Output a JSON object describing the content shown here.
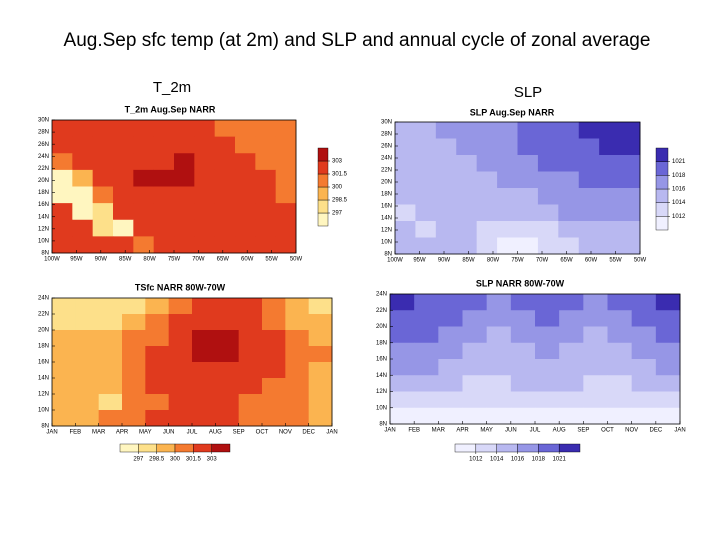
{
  "title": "Aug.Sep sfc temp (at 2m) and SLP and annual cycle of zonal average",
  "column_labels": [
    "T_2m",
    "SLP"
  ],
  "panels": [
    {
      "title": "T_2m Aug.Sep NARR",
      "yticks": [
        "30N",
        "28N",
        "26N",
        "24N",
        "22N",
        "20N",
        "18N",
        "16N",
        "14N",
        "12N",
        "10N",
        "8N"
      ],
      "xticks": [
        "100W",
        "95W",
        "90W",
        "85W",
        "80W",
        "75W",
        "70W",
        "65W",
        "60W",
        "55W",
        "50W"
      ],
      "levels": [
        297,
        298.5,
        300,
        301.5,
        303
      ],
      "colors": [
        "#fff6c0",
        "#fde08a",
        "#fbb450",
        "#f47a30",
        "#e03a1e",
        "#b01010"
      ],
      "grid": [
        [
          302.5,
          302,
          302,
          302,
          302,
          302,
          302,
          302,
          301,
          301,
          300,
          300
        ],
        [
          302,
          302,
          302,
          302,
          302,
          302,
          302,
          302,
          302,
          301,
          301,
          300
        ],
        [
          301,
          302,
          302,
          302,
          302,
          302,
          303.5,
          302,
          302,
          302,
          301,
          301
        ],
        [
          296,
          299,
          302,
          302,
          303.5,
          303.5,
          303.5,
          302,
          302,
          302,
          302,
          301
        ],
        [
          295,
          296,
          300,
          302,
          302,
          302,
          302,
          302,
          302,
          302,
          302,
          301
        ],
        [
          302,
          296,
          298,
          302,
          302,
          302,
          302,
          302,
          302,
          302,
          302,
          302
        ],
        [
          302,
          302,
          298,
          296,
          302,
          302,
          302,
          302,
          302,
          302,
          302,
          302
        ],
        [
          302,
          302,
          302,
          302,
          300,
          302,
          302,
          302,
          302,
          302,
          302,
          302
        ]
      ]
    },
    {
      "title": "SLP Aug.Sep NARR",
      "yticks": [
        "30N",
        "28N",
        "26N",
        "24N",
        "22N",
        "20N",
        "18N",
        "16N",
        "14N",
        "12N",
        "10N",
        "8N"
      ],
      "xticks": [
        "100W",
        "95W",
        "90W",
        "85W",
        "80W",
        "75W",
        "70W",
        "65W",
        "60W",
        "55W",
        "50W"
      ],
      "levels": [
        1012,
        1014,
        1016,
        1018,
        1021
      ],
      "colors": [
        "#f0f0ff",
        "#d8d8f8",
        "#b8b8f0",
        "#9696e6",
        "#6a66d6",
        "#3a2cb0"
      ],
      "grid": [
        [
          1015,
          1015,
          1016,
          1017,
          1017,
          1017,
          1018,
          1019,
          1020,
          1022,
          1022,
          1022
        ],
        [
          1015,
          1015,
          1015,
          1016,
          1016,
          1017,
          1018,
          1019,
          1019,
          1020,
          1021,
          1021
        ],
        [
          1015,
          1015,
          1015,
          1015,
          1016,
          1016,
          1017,
          1018,
          1018,
          1019,
          1019,
          1019
        ],
        [
          1014,
          1015,
          1015,
          1015,
          1015,
          1016,
          1016,
          1017,
          1017,
          1018,
          1018,
          1018
        ],
        [
          1014,
          1014,
          1015,
          1015,
          1015,
          1015,
          1015,
          1016,
          1016,
          1017,
          1017,
          1017
        ],
        [
          1013,
          1014,
          1014,
          1014,
          1015,
          1015,
          1015,
          1015,
          1016,
          1016,
          1016,
          1016
        ],
        [
          1015,
          1013,
          1014,
          1014,
          1013,
          1013,
          1013,
          1012.5,
          1014,
          1015,
          1015,
          1015
        ],
        [
          1015,
          1015,
          1014,
          1014,
          1012,
          1011,
          1011,
          1012,
          1013,
          1014,
          1014,
          1014
        ]
      ]
    },
    {
      "title": "TSfc NARR 80W-70W",
      "yticks": [
        "24N",
        "22N",
        "20N",
        "18N",
        "16N",
        "14N",
        "12N",
        "10N",
        "8N"
      ],
      "xticks": [
        "JAN",
        "FEB",
        "MAR",
        "APR",
        "MAY",
        "JUN",
        "JUL",
        "AUG",
        "SEP",
        "OCT",
        "NOV",
        "DEC",
        "JAN"
      ],
      "levels": [
        297,
        298.5,
        300,
        301.5,
        303
      ],
      "colors": [
        "#fff6c0",
        "#fde08a",
        "#fbb450",
        "#f47a30",
        "#e03a1e",
        "#b01010"
      ],
      "grid": [
        [
          297,
          297,
          297.5,
          298,
          299.5,
          301,
          301.5,
          302,
          301.5,
          300.5,
          299,
          297.5
        ],
        [
          298,
          297.5,
          298,
          299,
          300.5,
          302,
          302.5,
          302.5,
          302,
          301,
          299.5,
          298.5
        ],
        [
          298.5,
          298.5,
          299,
          300,
          301,
          302.5,
          303.5,
          303.5,
          302.5,
          301.5,
          300.5,
          299
        ],
        [
          299.5,
          299,
          299.5,
          300.5,
          301.5,
          302.5,
          303.5,
          303.5,
          302.5,
          301.5,
          300.5,
          300
        ],
        [
          299,
          299,
          299.5,
          300.5,
          301.5,
          302,
          302,
          302,
          302,
          301.5,
          300.5,
          299.5
        ],
        [
          299,
          299,
          299.5,
          300.5,
          301.5,
          301.5,
          301.5,
          301.5,
          301.5,
          300.5,
          300,
          299
        ],
        [
          299,
          299,
          298,
          300,
          301,
          301.5,
          301.5,
          301.5,
          301,
          300.5,
          300,
          299.5
        ],
        [
          299.5,
          299.5,
          300,
          300.5,
          301.5,
          301.5,
          301.5,
          301.5,
          301,
          300.5,
          300,
          299.5
        ]
      ]
    },
    {
      "title": "SLP NARR 80W-70W",
      "yticks": [
        "24N",
        "22N",
        "20N",
        "18N",
        "16N",
        "14N",
        "12N",
        "10N",
        "8N"
      ],
      "xticks": [
        "JAN",
        "FEB",
        "MAR",
        "APR",
        "MAY",
        "JUN",
        "JUL",
        "AUG",
        "SEP",
        "OCT",
        "NOV",
        "DEC",
        "JAN"
      ],
      "levels": [
        1012,
        1014,
        1016,
        1018,
        1021
      ],
      "colors": [
        "#f0f0ff",
        "#d8d8f8",
        "#b8b8f0",
        "#9696e6",
        "#6a66d6",
        "#3a2cb0"
      ],
      "grid": [
        [
          1022,
          1020,
          1019,
          1018,
          1017,
          1018,
          1019,
          1018,
          1017,
          1018,
          1019,
          1022
        ],
        [
          1020,
          1019,
          1018,
          1017,
          1016,
          1017,
          1018,
          1017,
          1016,
          1017,
          1018,
          1020
        ],
        [
          1018,
          1018,
          1017,
          1016,
          1015,
          1016,
          1017,
          1016,
          1015,
          1016,
          1017,
          1018
        ],
        [
          1017,
          1017,
          1016,
          1015,
          1015,
          1015,
          1016,
          1015,
          1014,
          1015,
          1016,
          1017
        ],
        [
          1016,
          1016,
          1015,
          1015,
          1014,
          1015,
          1015,
          1015,
          1014,
          1014,
          1015,
          1016
        ],
        [
          1014,
          1014,
          1014,
          1013,
          1013,
          1014,
          1014,
          1014,
          1013,
          1013,
          1014,
          1014
        ],
        [
          1013,
          1013,
          1013,
          1012,
          1012,
          1013,
          1013,
          1013,
          1012,
          1012,
          1013,
          1013
        ],
        [
          1011,
          1011,
          1011,
          1011,
          1011,
          1011,
          1011,
          1011,
          1011,
          1011,
          1011,
          1011
        ]
      ]
    }
  ]
}
